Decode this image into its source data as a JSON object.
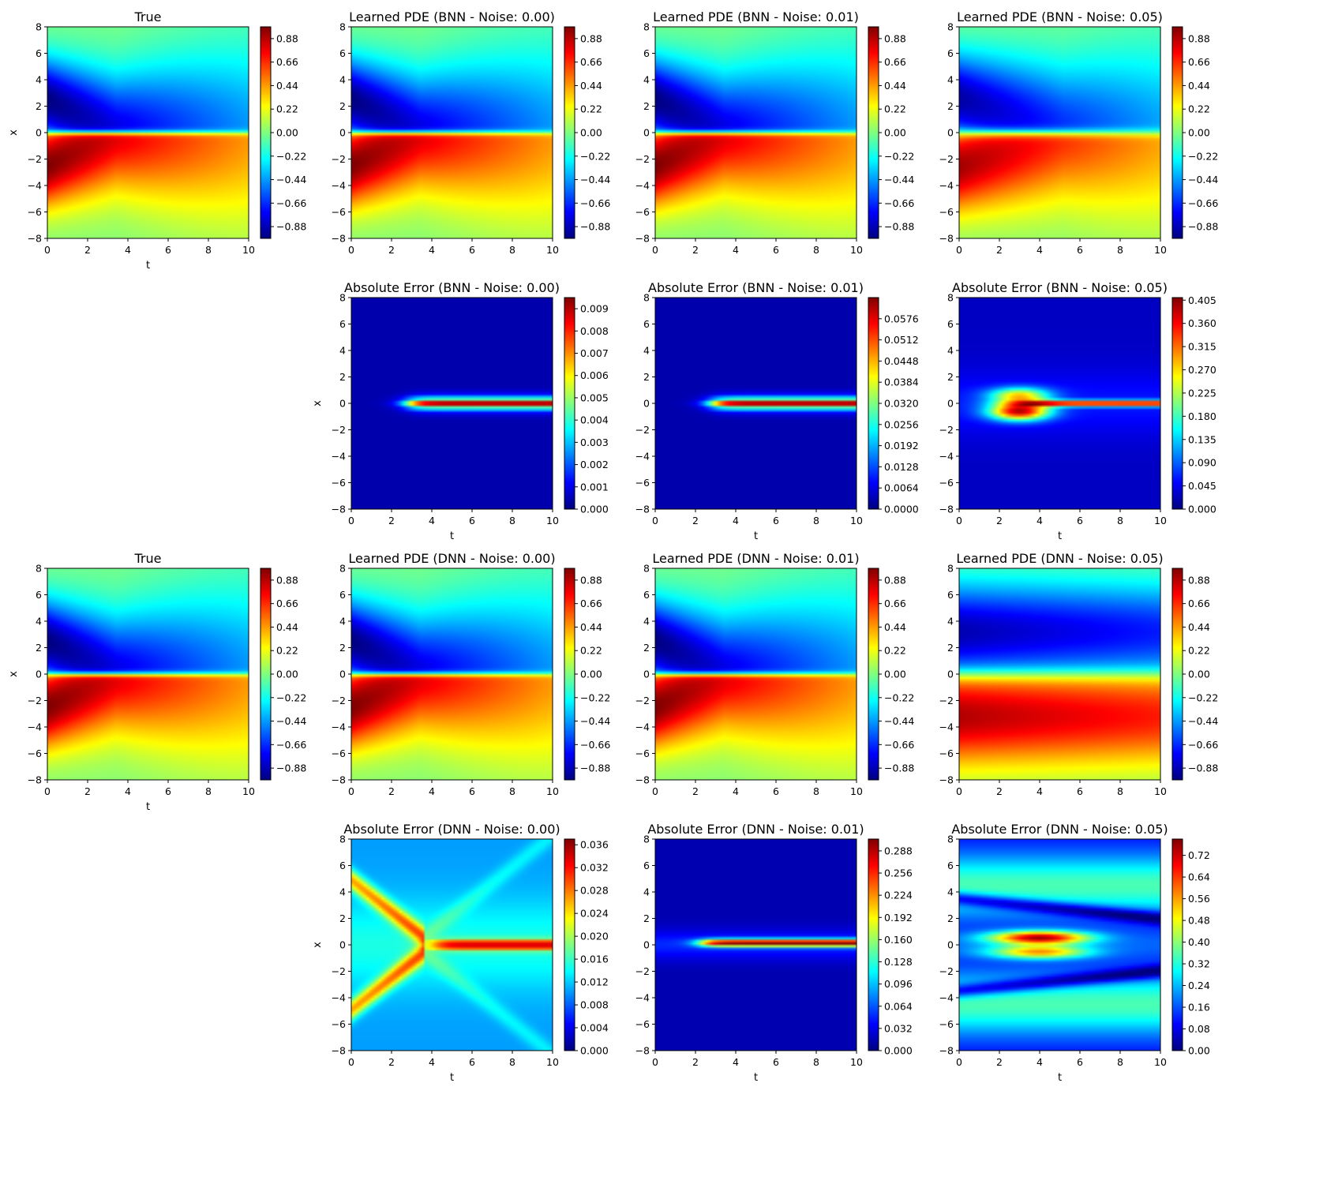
{
  "figure": {
    "colormap": "jet",
    "colormap_stops": [
      "#00007f",
      "#0000ff",
      "#007fff",
      "#00ffff",
      "#7fff7f",
      "#ffff00",
      "#ff7f00",
      "#ff0000",
      "#7f0000"
    ]
  },
  "chart_data": [
    {
      "type": "heatmap",
      "title": "True",
      "xlabel": "t",
      "ylabel": "x",
      "xlim": [
        0,
        10
      ],
      "ylim": [
        -8,
        8
      ],
      "xticks": [
        "0",
        "2",
        "4",
        "6",
        "8",
        "10"
      ],
      "yticks": [
        "8",
        "6",
        "4",
        "2",
        "0",
        "−2",
        "−4",
        "−6",
        "−8"
      ],
      "field": "solution",
      "clim": [
        -0.99,
        0.99
      ],
      "colorbar_ticks": [
        "0.88",
        "0.66",
        "0.44",
        "0.22",
        "0.00",
        "−0.22",
        "−0.44",
        "−0.66",
        "−0.88"
      ]
    },
    {
      "type": "heatmap",
      "title": "Learned PDE (BNN - Noise: 0.00)",
      "xlabel": "",
      "ylabel": "",
      "xlim": [
        0,
        10
      ],
      "ylim": [
        -8,
        8
      ],
      "xticks": [
        "0",
        "2",
        "4",
        "6",
        "8",
        "10"
      ],
      "yticks": [
        "8",
        "6",
        "4",
        "2",
        "0",
        "−2",
        "−4",
        "−6",
        "−8"
      ],
      "field": "solution",
      "clim": [
        -0.99,
        0.99
      ],
      "colorbar_ticks": [
        "0.88",
        "0.66",
        "0.44",
        "0.22",
        "0.00",
        "−0.22",
        "−0.44",
        "−0.66",
        "−0.88"
      ]
    },
    {
      "type": "heatmap",
      "title": "Learned PDE (BNN - Noise: 0.01)",
      "xlabel": "",
      "ylabel": "",
      "xlim": [
        0,
        10
      ],
      "ylim": [
        -8,
        8
      ],
      "xticks": [
        "0",
        "2",
        "4",
        "6",
        "8",
        "10"
      ],
      "yticks": [
        "8",
        "6",
        "4",
        "2",
        "0",
        "−2",
        "−4",
        "−6",
        "−8"
      ],
      "field": "solution",
      "clim": [
        -0.99,
        0.99
      ],
      "colorbar_ticks": [
        "0.88",
        "0.66",
        "0.44",
        "0.22",
        "0.00",
        "−0.22",
        "−0.44",
        "−0.66",
        "−0.88"
      ]
    },
    {
      "type": "heatmap",
      "title": "Learned PDE (BNN - Noise: 0.05)",
      "xlabel": "",
      "ylabel": "",
      "xlim": [
        0,
        10
      ],
      "ylim": [
        -8,
        8
      ],
      "xticks": [
        "0",
        "2",
        "4",
        "6",
        "8",
        "10"
      ],
      "yticks": [
        "8",
        "6",
        "4",
        "2",
        "0",
        "−2",
        "−4",
        "−6",
        "−8"
      ],
      "field": "solution_soft",
      "clim": [
        -0.99,
        0.99
      ],
      "colorbar_ticks": [
        "0.88",
        "0.66",
        "0.44",
        "0.22",
        "0.00",
        "−0.22",
        "−0.44",
        "−0.66",
        "−0.88"
      ]
    },
    {
      "type": "heatmap",
      "title": "Absolute Error (BNN - Noise: 0.00)",
      "xlabel": "t",
      "ylabel": "x",
      "xlim": [
        0,
        10
      ],
      "ylim": [
        -8,
        8
      ],
      "xticks": [
        "0",
        "2",
        "4",
        "6",
        "8",
        "10"
      ],
      "yticks": [
        "8",
        "6",
        "4",
        "2",
        "0",
        "−2",
        "−4",
        "−6",
        "−8"
      ],
      "field": "err_band",
      "clim": [
        0,
        0.0095
      ],
      "colorbar_ticks": [
        "0.009",
        "0.008",
        "0.007",
        "0.006",
        "0.005",
        "0.004",
        "0.003",
        "0.002",
        "0.001",
        "0.000"
      ]
    },
    {
      "type": "heatmap",
      "title": "Absolute Error (BNN - Noise: 0.01)",
      "xlabel": "t",
      "ylabel": "",
      "xlim": [
        0,
        10
      ],
      "ylim": [
        -8,
        8
      ],
      "xticks": [
        "0",
        "2",
        "4",
        "6",
        "8",
        "10"
      ],
      "yticks": [
        "8",
        "6",
        "4",
        "2",
        "0",
        "−2",
        "−4",
        "−6",
        "−8"
      ],
      "field": "err_band",
      "clim": [
        0,
        0.064
      ],
      "colorbar_ticks": [
        "0.0576",
        "0.0512",
        "0.0448",
        "0.0384",
        "0.0320",
        "0.0256",
        "0.0192",
        "0.0128",
        "0.0064",
        "0.0000"
      ]
    },
    {
      "type": "heatmap",
      "title": "Absolute Error (BNN - Noise: 0.05)",
      "xlabel": "t",
      "ylabel": "",
      "xlim": [
        0,
        10
      ],
      "ylim": [
        -8,
        8
      ],
      "xticks": [
        "0",
        "2",
        "4",
        "6",
        "8",
        "10"
      ],
      "yticks": [
        "8",
        "6",
        "4",
        "2",
        "0",
        "−2",
        "−4",
        "−6",
        "−8"
      ],
      "field": "err_lobes",
      "clim": [
        0,
        0.41
      ],
      "colorbar_ticks": [
        "0.405",
        "0.360",
        "0.315",
        "0.270",
        "0.225",
        "0.180",
        "0.135",
        "0.090",
        "0.045",
        "0.000"
      ]
    },
    {
      "type": "heatmap",
      "title": "True",
      "xlabel": "t",
      "ylabel": "x",
      "xlim": [
        0,
        10
      ],
      "ylim": [
        -8,
        8
      ],
      "xticks": [
        "0",
        "2",
        "4",
        "6",
        "8",
        "10"
      ],
      "yticks": [
        "8",
        "6",
        "4",
        "2",
        "0",
        "−2",
        "−4",
        "−6",
        "−8"
      ],
      "field": "solution",
      "clim": [
        -0.99,
        0.99
      ],
      "colorbar_ticks": [
        "0.88",
        "0.66",
        "0.44",
        "0.22",
        "0.00",
        "−0.22",
        "−0.44",
        "−0.66",
        "−0.88"
      ]
    },
    {
      "type": "heatmap",
      "title": "Learned PDE (DNN - Noise: 0.00)",
      "xlabel": "",
      "ylabel": "",
      "xlim": [
        0,
        10
      ],
      "ylim": [
        -8,
        8
      ],
      "xticks": [
        "0",
        "2",
        "4",
        "6",
        "8",
        "10"
      ],
      "yticks": [
        "8",
        "6",
        "4",
        "2",
        "0",
        "−2",
        "−4",
        "−6",
        "−8"
      ],
      "field": "solution",
      "clim": [
        -0.99,
        0.99
      ],
      "colorbar_ticks": [
        "0.88",
        "0.66",
        "0.44",
        "0.22",
        "0.00",
        "−0.22",
        "−0.44",
        "−0.66",
        "−0.88"
      ]
    },
    {
      "type": "heatmap",
      "title": "Learned PDE (DNN - Noise: 0.01)",
      "xlabel": "",
      "ylabel": "",
      "xlim": [
        0,
        10
      ],
      "ylim": [
        -8,
        8
      ],
      "xticks": [
        "0",
        "2",
        "4",
        "6",
        "8",
        "10"
      ],
      "yticks": [
        "8",
        "6",
        "4",
        "2",
        "0",
        "−2",
        "−4",
        "−6",
        "−8"
      ],
      "field": "solution",
      "clim": [
        -0.99,
        0.99
      ],
      "colorbar_ticks": [
        "0.88",
        "0.66",
        "0.44",
        "0.22",
        "0.00",
        "−0.22",
        "−0.44",
        "−0.66",
        "−0.88"
      ]
    },
    {
      "type": "heatmap",
      "title": "Learned PDE (DNN - Noise: 0.05)",
      "xlabel": "",
      "ylabel": "",
      "xlim": [
        0,
        10
      ],
      "ylim": [
        -8,
        8
      ],
      "xticks": [
        "0",
        "2",
        "4",
        "6",
        "8",
        "10"
      ],
      "yticks": [
        "8",
        "6",
        "4",
        "2",
        "0",
        "−2",
        "−4",
        "−6",
        "−8"
      ],
      "field": "solution_flat",
      "clim": [
        -0.99,
        0.99
      ],
      "colorbar_ticks": [
        "0.88",
        "0.66",
        "0.44",
        "0.22",
        "0.00",
        "−0.22",
        "−0.44",
        "−0.66",
        "−0.88"
      ]
    },
    {
      "type": "heatmap",
      "title": "Absolute Error (DNN - Noise: 0.00)",
      "xlabel": "t",
      "ylabel": "x",
      "xlim": [
        0,
        10
      ],
      "ylim": [
        -8,
        8
      ],
      "xticks": [
        "0",
        "2",
        "4",
        "6",
        "8",
        "10"
      ],
      "yticks": [
        "8",
        "6",
        "4",
        "2",
        "0",
        "−2",
        "−4",
        "−6",
        "−8"
      ],
      "field": "err_wave",
      "clim": [
        0,
        0.037
      ],
      "colorbar_ticks": [
        "0.036",
        "0.032",
        "0.028",
        "0.024",
        "0.020",
        "0.016",
        "0.012",
        "0.008",
        "0.004",
        "0.000"
      ]
    },
    {
      "type": "heatmap",
      "title": "Absolute Error (DNN - Noise: 0.01)",
      "xlabel": "t",
      "ylabel": "",
      "xlim": [
        0,
        10
      ],
      "ylim": [
        -8,
        8
      ],
      "xticks": [
        "0",
        "2",
        "4",
        "6",
        "8",
        "10"
      ],
      "yticks": [
        "8",
        "6",
        "4",
        "2",
        "0",
        "−2",
        "−4",
        "−6",
        "−8"
      ],
      "field": "err_stripe",
      "clim": [
        0,
        0.305
      ],
      "colorbar_ticks": [
        "0.288",
        "0.256",
        "0.224",
        "0.192",
        "0.160",
        "0.128",
        "0.096",
        "0.064",
        "0.032",
        "0.000"
      ]
    },
    {
      "type": "heatmap",
      "title": "Absolute Error (DNN - Noise: 0.05)",
      "xlabel": "t",
      "ylabel": "",
      "xlim": [
        0,
        10
      ],
      "ylim": [
        -8,
        8
      ],
      "xticks": [
        "0",
        "2",
        "4",
        "6",
        "8",
        "10"
      ],
      "yticks": [
        "8",
        "6",
        "4",
        "2",
        "0",
        "−2",
        "−4",
        "−6",
        "−8"
      ],
      "field": "err_big",
      "clim": [
        0,
        0.78
      ],
      "colorbar_ticks": [
        "0.72",
        "0.64",
        "0.56",
        "0.48",
        "0.40",
        "0.32",
        "0.24",
        "0.16",
        "0.08",
        "0.00"
      ]
    }
  ]
}
